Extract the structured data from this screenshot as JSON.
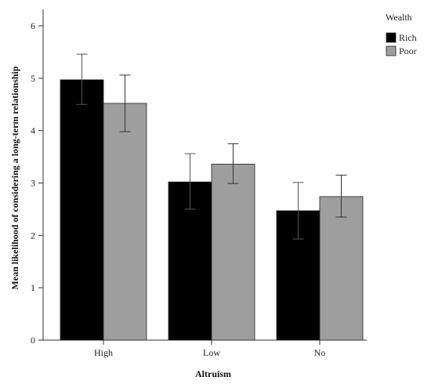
{
  "chart_data": {
    "type": "bar",
    "categories": [
      "High",
      "Low",
      "No"
    ],
    "series": [
      {
        "name": "Rich",
        "color": "#000000",
        "values": [
          4.97,
          3.02,
          2.47
        ],
        "error_low": [
          4.5,
          2.5,
          1.93
        ],
        "error_high": [
          5.46,
          3.56,
          3.01
        ]
      },
      {
        "name": "Poor",
        "color": "#9e9e9e",
        "values": [
          4.52,
          3.36,
          2.74
        ],
        "error_low": [
          3.98,
          2.99,
          2.35
        ],
        "error_high": [
          5.06,
          3.75,
          3.15
        ]
      }
    ],
    "xlabel": "Altruism",
    "ylabel": "Mean likelihood of considering a long-term relationship",
    "ylim": [
      0,
      6
    ],
    "yticks": [
      "0",
      "1",
      "2",
      "3",
      "4",
      "5",
      "6"
    ],
    "legend_title": "Wealth",
    "legend_position": "top-right",
    "grid": false
  }
}
